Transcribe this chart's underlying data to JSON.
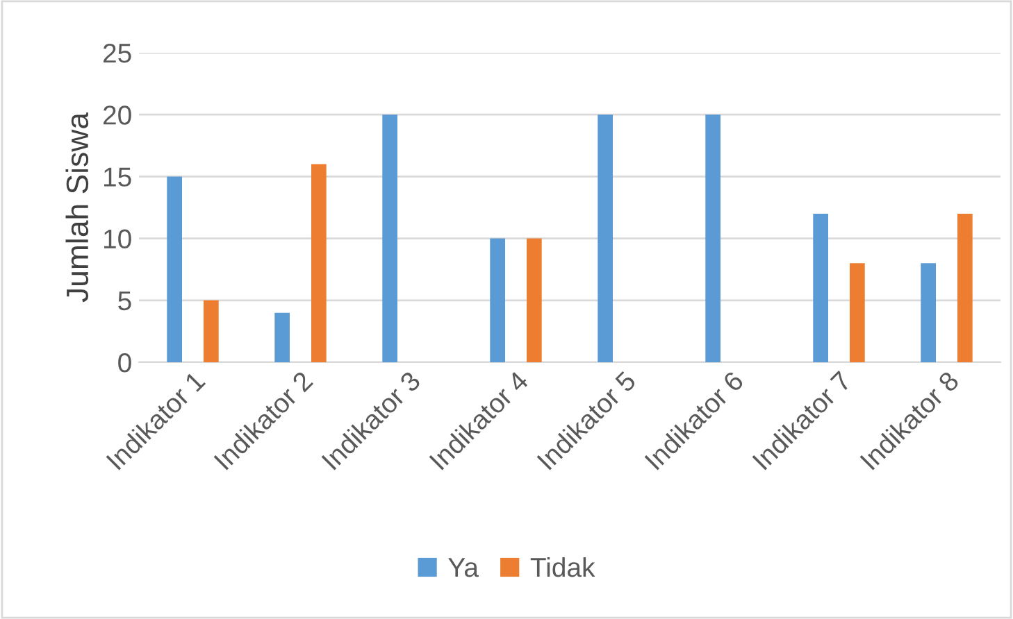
{
  "chart_data": {
    "type": "bar",
    "ylabel": "Jumlah Siswa",
    "categories": [
      "Indikator 1",
      "Indikator 2",
      "Indikator 3",
      "Indikator 4",
      "Indikator 5",
      "Indikator 6",
      "Indikator 7",
      "Indikator 8"
    ],
    "series": [
      {
        "name": "Ya",
        "color": "#5b9bd5",
        "values": [
          15,
          4,
          20,
          10,
          20,
          20,
          12,
          8
        ]
      },
      {
        "name": "Tidak",
        "color": "#ed7d31",
        "values": [
          5,
          16,
          0,
          10,
          0,
          0,
          8,
          12
        ]
      }
    ],
    "ylim": [
      0,
      25
    ],
    "yticks": [
      0,
      5,
      10,
      15,
      20,
      25
    ],
    "grid": "y",
    "legend": "bottom"
  }
}
